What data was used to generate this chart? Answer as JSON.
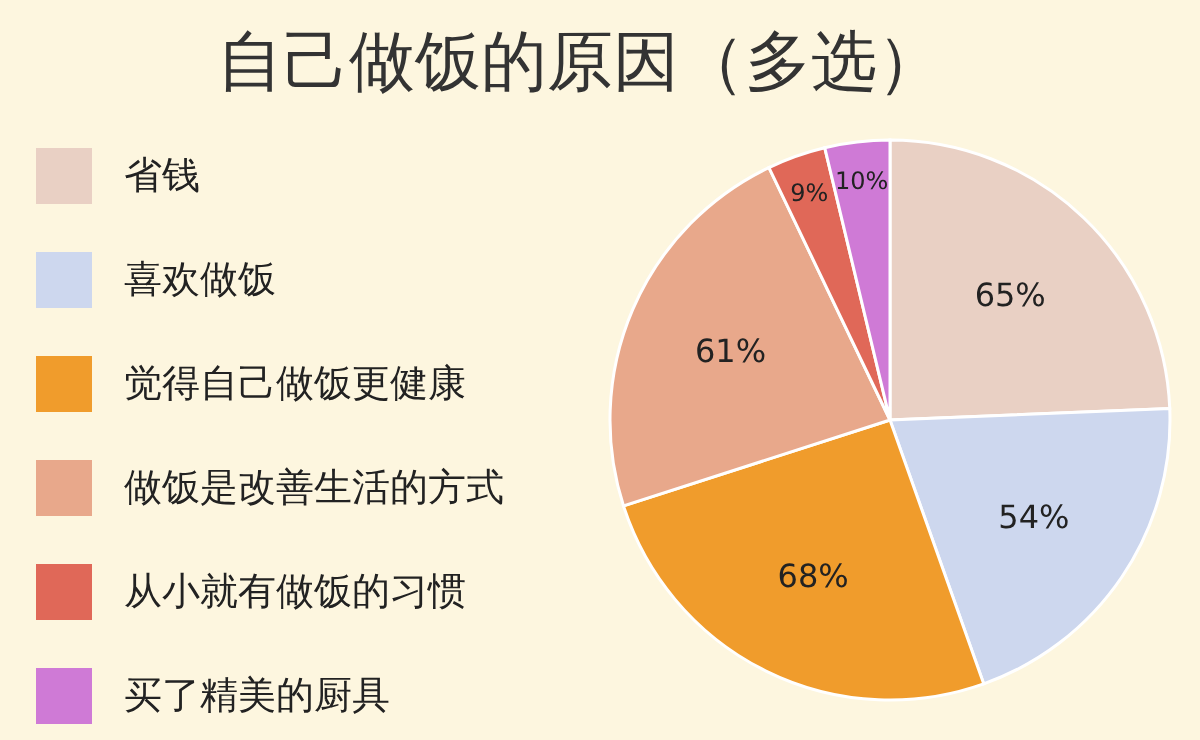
{
  "chart_data": {
    "type": "pie",
    "title": "自己做饭的原因（多选）",
    "categories": [
      "省钱",
      "喜欢做饭",
      "觉得自己做饭更健康",
      "做饭是改善生活的方式",
      "从小就有做饭的习惯",
      "买了精美的厨具"
    ],
    "values": [
      65,
      54,
      68,
      61,
      9,
      10
    ],
    "value_labels": [
      "65%",
      "54%",
      "68%",
      "61%",
      "9%",
      "10%"
    ],
    "colors": [
      "#e9d0c4",
      "#cdd7ee",
      "#f09c2c",
      "#e8a88b",
      "#e06858",
      "#cf7ad6"
    ],
    "legend": "left"
  }
}
